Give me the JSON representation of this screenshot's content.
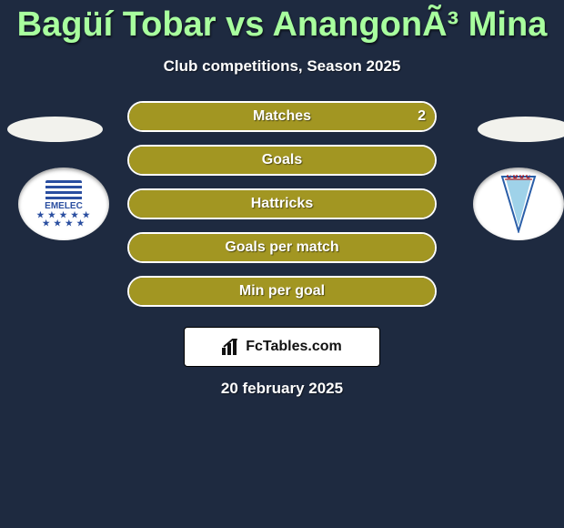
{
  "title": "Bagüí Tobar vs AnangonÃ³ Mina",
  "subtitle": "Club competitions, Season 2025",
  "date": "20 february 2025",
  "colors": {
    "leftFill": "#a29622"
  },
  "bars": [
    {
      "label": "Matches",
      "left": null,
      "right": "2",
      "leftFillPct": 0,
      "rightFillPct": 100
    },
    {
      "label": "Goals",
      "left": null,
      "right": null,
      "leftFillPct": 100,
      "rightFillPct": 0
    },
    {
      "label": "Hattricks",
      "left": null,
      "right": null,
      "leftFillPct": 100,
      "rightFillPct": 0
    },
    {
      "label": "Goals per match",
      "left": null,
      "right": null,
      "leftFillPct": 100,
      "rightFillPct": 0
    },
    {
      "label": "Min per goal",
      "left": null,
      "right": null,
      "leftFillPct": 100,
      "rightFillPct": 0
    }
  ],
  "brand": "FcTables.com",
  "leftClub": "EMELEC",
  "rightClub": "UC"
}
